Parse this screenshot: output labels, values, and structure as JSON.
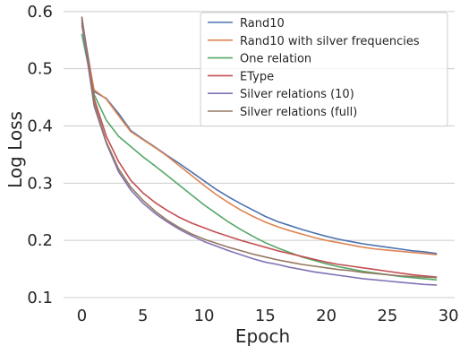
{
  "chart_data": {
    "type": "line",
    "title": "",
    "xlabel": "Epoch",
    "ylabel": "Log Loss",
    "xlim": [
      -1.5,
      30.5
    ],
    "ylim": [
      0.1,
      0.6
    ],
    "xticks": [
      0,
      5,
      10,
      15,
      20,
      25,
      30
    ],
    "yticks": [
      0.1,
      0.2,
      0.3,
      0.4,
      0.5,
      0.6
    ],
    "grid": "y",
    "legend_position": "top-right",
    "x": [
      0,
      1,
      2,
      3,
      4,
      5,
      6,
      7,
      8,
      9,
      10,
      11,
      12,
      13,
      14,
      15,
      16,
      17,
      18,
      19,
      20,
      21,
      22,
      23,
      24,
      25,
      26,
      27,
      28,
      29
    ],
    "series": [
      {
        "name": "Rand10",
        "color": "#4c72b0",
        "values": [
          0.585,
          0.46,
          0.448,
          0.422,
          0.392,
          0.377,
          0.363,
          0.348,
          0.334,
          0.319,
          0.304,
          0.289,
          0.276,
          0.264,
          0.253,
          0.242,
          0.233,
          0.226,
          0.219,
          0.213,
          0.207,
          0.202,
          0.198,
          0.194,
          0.191,
          0.188,
          0.185,
          0.182,
          0.18,
          0.177
        ]
      },
      {
        "name": "Rand10 with silver frequencies",
        "color": "#dd8452",
        "values": [
          0.575,
          0.463,
          0.447,
          0.418,
          0.39,
          0.376,
          0.362,
          0.347,
          0.33,
          0.313,
          0.296,
          0.28,
          0.266,
          0.253,
          0.242,
          0.232,
          0.224,
          0.217,
          0.211,
          0.205,
          0.2,
          0.196,
          0.192,
          0.188,
          0.185,
          0.183,
          0.181,
          0.179,
          0.177,
          0.175
        ]
      },
      {
        "name": "One relation",
        "color": "#55a868",
        "values": [
          0.56,
          0.455,
          0.41,
          0.382,
          0.364,
          0.346,
          0.33,
          0.313,
          0.296,
          0.279,
          0.262,
          0.247,
          0.232,
          0.219,
          0.207,
          0.196,
          0.187,
          0.179,
          0.171,
          0.165,
          0.159,
          0.154,
          0.15,
          0.146,
          0.143,
          0.14,
          0.137,
          0.135,
          0.133,
          0.131
        ]
      },
      {
        "name": "EType",
        "color": "#c44e52",
        "values": [
          0.59,
          0.448,
          0.382,
          0.338,
          0.305,
          0.283,
          0.266,
          0.252,
          0.24,
          0.23,
          0.222,
          0.214,
          0.207,
          0.2,
          0.194,
          0.188,
          0.182,
          0.177,
          0.172,
          0.167,
          0.162,
          0.158,
          0.155,
          0.152,
          0.149,
          0.146,
          0.143,
          0.14,
          0.138,
          0.136
        ]
      },
      {
        "name": "Silver relations (10)",
        "color": "#8172b3",
        "values": [
          0.58,
          0.435,
          0.37,
          0.32,
          0.288,
          0.265,
          0.247,
          0.232,
          0.219,
          0.208,
          0.198,
          0.19,
          0.182,
          0.175,
          0.168,
          0.162,
          0.158,
          0.153,
          0.149,
          0.145,
          0.142,
          0.139,
          0.136,
          0.133,
          0.131,
          0.129,
          0.127,
          0.125,
          0.123,
          0.122
        ]
      },
      {
        "name": "Silver relations (full)",
        "color": "#937860",
        "values": [
          0.59,
          0.44,
          0.372,
          0.325,
          0.293,
          0.27,
          0.251,
          0.235,
          0.222,
          0.211,
          0.202,
          0.195,
          0.188,
          0.182,
          0.176,
          0.171,
          0.166,
          0.162,
          0.158,
          0.155,
          0.152,
          0.149,
          0.147,
          0.144,
          0.142,
          0.14,
          0.138,
          0.137,
          0.136,
          0.135
        ]
      }
    ]
  }
}
